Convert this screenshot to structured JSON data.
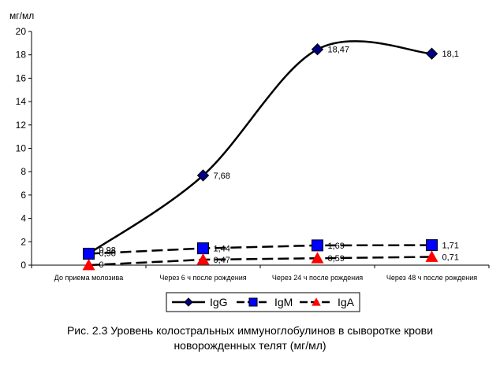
{
  "chart_data": {
    "type": "line",
    "ylabel": "мг/мл",
    "ylim": [
      0,
      20
    ],
    "yticks": [
      "0",
      "2",
      "4",
      "6",
      "8",
      "10",
      "12",
      "14",
      "16",
      "18",
      "20"
    ],
    "grid": false,
    "legend": "bottom",
    "categories": [
      "До приема молозива",
      "Через 6 ч после рождения",
      "Через 24 ч после рождения",
      "Через 48 ч после рождения"
    ],
    "series": [
      {
        "name": "IgG",
        "values": [
          0.98,
          7.68,
          18.47,
          18.1
        ],
        "labels": [
          "0,98",
          "7,68",
          "18,47",
          "18,1"
        ],
        "color": "#000080",
        "line": "solid",
        "marker": "diamond"
      },
      {
        "name": "IgM",
        "values": [
          0.98,
          1.44,
          1.69,
          1.71
        ],
        "labels": [
          "0,98",
          "1,44",
          "1,69",
          "1,71"
        ],
        "color": "#0000ff",
        "line": "dashed",
        "marker": "square"
      },
      {
        "name": "IgA",
        "values": [
          0,
          0.47,
          0.59,
          0.71
        ],
        "labels": [
          "0",
          "0,47",
          "0,59",
          "0,71"
        ],
        "color": "#ff0000",
        "line": "dashed",
        "marker": "triangle"
      }
    ]
  },
  "caption": {
    "line1": "Рис. 2.3 Уровень колостральных иммуноглобулинов в сыворотке крови",
    "line2": "новорожденных телят (мг/мл)"
  }
}
